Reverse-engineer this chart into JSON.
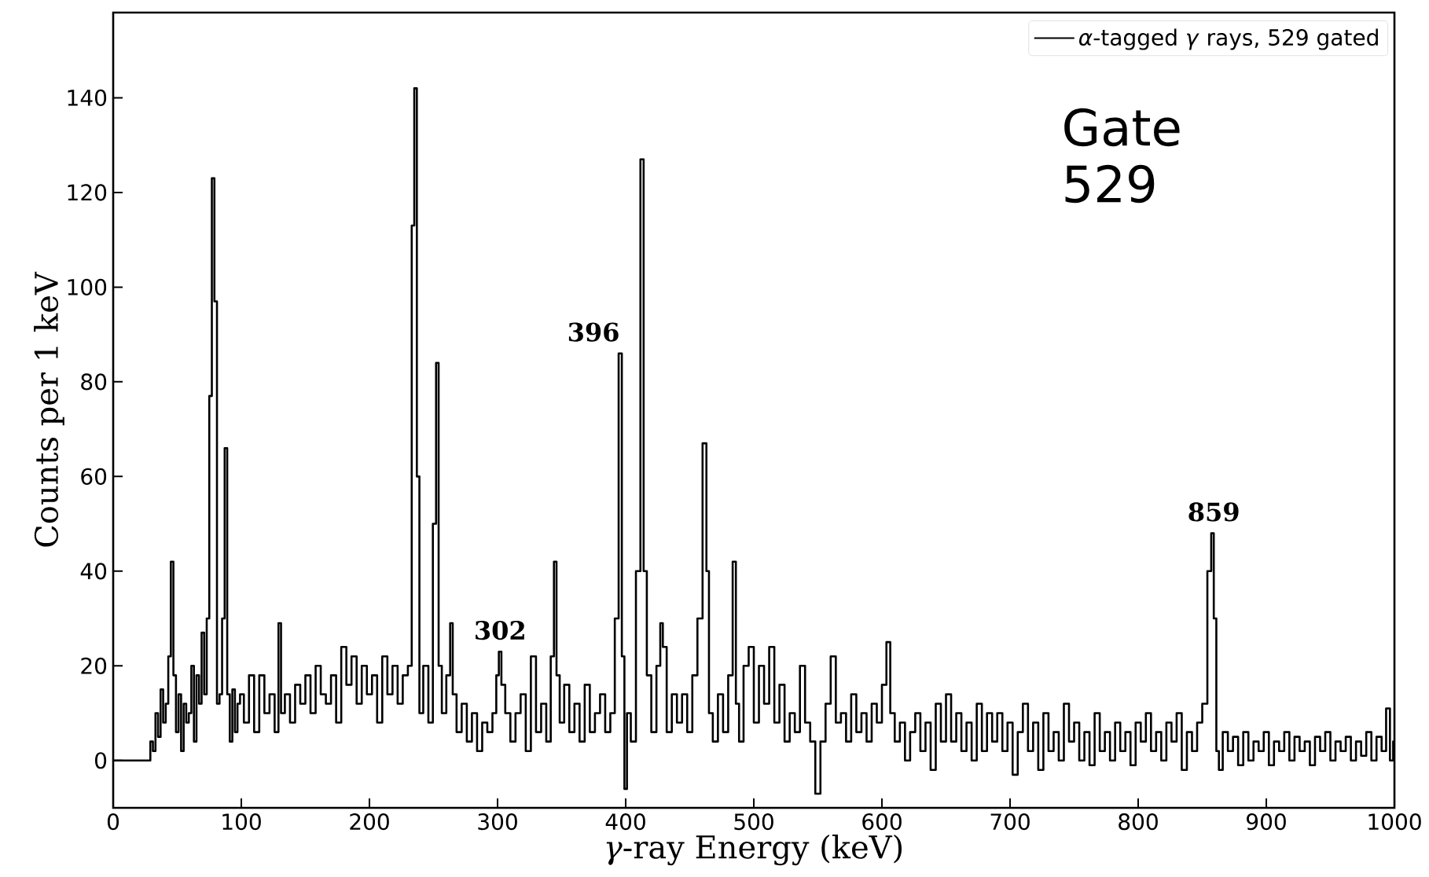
{
  "chart_data": {
    "type": "step",
    "xlabel": "*γ*-ray Energy (keV)",
    "ylabel": "Counts per 1 keV",
    "x": [
      0,
      28,
      30,
      32,
      34,
      36,
      38,
      40,
      42,
      44,
      46,
      48,
      50,
      52,
      54,
      56,
      58,
      60,
      62,
      64,
      66,
      68,
      70,
      72,
      74,
      76,
      78,
      80,
      82,
      84,
      86,
      88,
      90,
      92,
      94,
      96,
      98,
      100,
      104,
      108,
      112,
      116,
      120,
      124,
      128,
      130,
      132,
      136,
      140,
      144,
      148,
      152,
      156,
      160,
      164,
      168,
      172,
      176,
      180,
      184,
      188,
      192,
      196,
      200,
      204,
      208,
      212,
      216,
      220,
      224,
      228,
      232,
      234,
      236,
      238,
      240,
      244,
      248,
      251,
      253,
      255,
      258,
      262,
      264,
      266,
      270,
      274,
      278,
      282,
      286,
      290,
      294,
      298,
      300,
      302,
      304,
      308,
      312,
      316,
      320,
      324,
      328,
      332,
      336,
      340,
      343,
      345,
      347,
      350,
      354,
      358,
      362,
      366,
      370,
      374,
      378,
      382,
      386,
      390,
      393,
      396,
      398,
      400,
      402,
      406,
      410,
      413,
      415,
      418,
      422,
      426,
      428,
      430,
      434,
      438,
      442,
      446,
      450,
      454,
      458,
      462,
      464,
      466,
      470,
      474,
      478,
      482,
      485,
      487,
      490,
      494,
      498,
      502,
      506,
      510,
      514,
      518,
      522,
      526,
      530,
      534,
      538,
      542,
      546,
      550,
      554,
      558,
      562,
      566,
      570,
      574,
      578,
      582,
      586,
      590,
      594,
      598,
      602,
      605,
      608,
      612,
      616,
      620,
      624,
      628,
      632,
      636,
      640,
      644,
      648,
      652,
      656,
      660,
      664,
      668,
      672,
      676,
      680,
      684,
      688,
      692,
      696,
      700,
      704,
      708,
      712,
      716,
      720,
      724,
      728,
      732,
      736,
      740,
      744,
      748,
      752,
      756,
      760,
      764,
      768,
      772,
      776,
      780,
      784,
      788,
      792,
      796,
      800,
      804,
      808,
      812,
      816,
      820,
      824,
      828,
      832,
      836,
      840,
      844,
      848,
      852,
      856,
      858,
      860,
      862,
      864,
      868,
      872,
      876,
      880,
      884,
      888,
      892,
      896,
      900,
      904,
      908,
      912,
      916,
      920,
      924,
      928,
      932,
      936,
      940,
      944,
      948,
      952,
      956,
      960,
      964,
      968,
      972,
      976,
      980,
      984,
      988,
      992,
      995,
      998,
      1000
    ],
    "series": [
      {
        "name": "*α*-tagged *γ* rays, 529 gated",
        "color": "#000000",
        "values": [
          0,
          0,
          4,
          2,
          10,
          5,
          15,
          8,
          12,
          22,
          42,
          18,
          6,
          14,
          2,
          12,
          8,
          10,
          20,
          4,
          18,
          12,
          27,
          14,
          30,
          77,
          123,
          97,
          12,
          14,
          30,
          66,
          14,
          4,
          15,
          6,
          12,
          14,
          8,
          18,
          6,
          18,
          10,
          14,
          6,
          29,
          10,
          14,
          8,
          16,
          12,
          18,
          10,
          20,
          14,
          12,
          18,
          8,
          24,
          16,
          22,
          12,
          20,
          14,
          18,
          8,
          22,
          14,
          20,
          12,
          18,
          20,
          113,
          142,
          60,
          10,
          20,
          8,
          50,
          84,
          20,
          10,
          18,
          29,
          14,
          6,
          12,
          4,
          10,
          2,
          8,
          6,
          10,
          18,
          23,
          16,
          10,
          4,
          10,
          14,
          2,
          22,
          6,
          12,
          4,
          22,
          42,
          18,
          8,
          16,
          6,
          12,
          4,
          16,
          6,
          10,
          14,
          6,
          10,
          30,
          86,
          22,
          -6,
          10,
          4,
          40,
          127,
          40,
          18,
          6,
          20,
          29,
          24,
          6,
          14,
          8,
          14,
          6,
          18,
          30,
          67,
          40,
          10,
          4,
          14,
          6,
          18,
          42,
          12,
          4,
          20,
          24,
          8,
          20,
          12,
          24,
          8,
          16,
          4,
          10,
          6,
          20,
          8,
          4,
          -7,
          4,
          12,
          22,
          8,
          10,
          4,
          14,
          6,
          10,
          4,
          12,
          8,
          16,
          25,
          10,
          4,
          8,
          0,
          6,
          10,
          2,
          8,
          -2,
          12,
          4,
          14,
          4,
          10,
          2,
          8,
          0,
          12,
          2,
          10,
          4,
          10,
          2,
          8,
          -3,
          6,
          12,
          2,
          8,
          -2,
          10,
          2,
          6,
          0,
          12,
          4,
          8,
          0,
          6,
          -1,
          10,
          2,
          6,
          0,
          8,
          2,
          6,
          -1,
          8,
          4,
          10,
          2,
          6,
          0,
          8,
          4,
          10,
          -2,
          6,
          2,
          8,
          12,
          40,
          48,
          30,
          2,
          -2,
          6,
          2,
          5,
          -1,
          6,
          0,
          4,
          2,
          6,
          -1,
          4,
          2,
          6,
          0,
          5,
          2,
          4,
          -1,
          5,
          2,
          6,
          0,
          4,
          2,
          5,
          0,
          4,
          1,
          6,
          0,
          5,
          2,
          11,
          0,
          4
        ]
      }
    ],
    "xlim": [
      0,
      1000
    ],
    "ylim": [
      -10,
      158
    ],
    "xticks": [
      0,
      100,
      200,
      300,
      400,
      500,
      600,
      700,
      800,
      900,
      1000
    ],
    "yticks": [
      0,
      20,
      40,
      60,
      80,
      100,
      120,
      140
    ],
    "legend": "top right",
    "annotations": [
      {
        "text": "302",
        "x": 302,
        "y": 23
      },
      {
        "text": "396",
        "x": 396,
        "y": 86
      },
      {
        "text": "859",
        "x": 859,
        "y": 48
      },
      "Gate 529"
    ]
  }
}
